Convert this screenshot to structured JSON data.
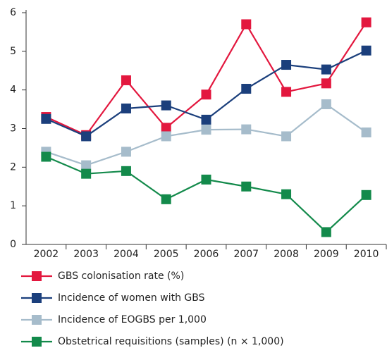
{
  "chart_data": {
    "type": "line",
    "categories": [
      "2002",
      "2003",
      "2004",
      "2005",
      "2006",
      "2007",
      "2008",
      "2009",
      "2010"
    ],
    "series": [
      {
        "name": "GBS colonisation rate (%)",
        "color": "#e3173e",
        "values": [
          3.3,
          2.83,
          4.25,
          3.02,
          3.88,
          5.7,
          3.95,
          4.17,
          5.75
        ]
      },
      {
        "name": "Incidence of women with GBS",
        "color": "#1b3f7c",
        "values": [
          3.25,
          2.8,
          3.52,
          3.6,
          3.23,
          4.03,
          4.65,
          4.53,
          5.02
        ]
      },
      {
        "name": "Incidence of EOGBS per 1,000",
        "color": "#a6bccb",
        "values": [
          2.4,
          2.05,
          2.4,
          2.8,
          2.97,
          2.98,
          2.8,
          3.63,
          2.9
        ]
      },
      {
        "name": "Obstetrical requisitions (samples) (n × 1,000)",
        "color": "#138a4b",
        "values": [
          2.27,
          1.83,
          1.9,
          1.17,
          1.68,
          1.5,
          1.3,
          0.32,
          1.28
        ]
      }
    ],
    "ylim": [
      0,
      6
    ],
    "yticks": [
      0,
      1,
      2,
      3,
      4,
      5,
      6
    ],
    "grid": false
  }
}
